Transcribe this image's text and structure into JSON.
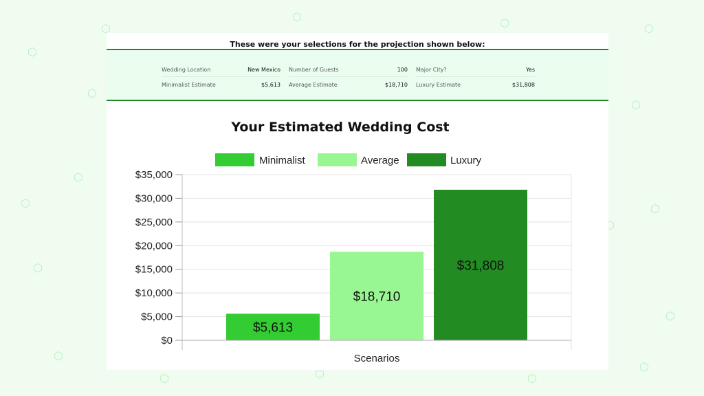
{
  "selections": {
    "title": "These were your selections for the projection shown below:",
    "rows": [
      [
        {
          "label": "Wedding Location",
          "value": "New Mexico"
        },
        {
          "label": "Number of Guests",
          "value": "100"
        },
        {
          "label": "Major City?",
          "value": "Yes"
        }
      ],
      [
        {
          "label": "Minimalist Estimate",
          "value": "$5,613"
        },
        {
          "label": "Average Estimate",
          "value": "$18,710"
        },
        {
          "label": "Luxury Estimate",
          "value": "$31,808"
        }
      ]
    ]
  },
  "colors": {
    "background": "#effcef",
    "accent": "#1a8a2a",
    "minimalist": "#33cc33",
    "average": "#99f793",
    "luxury": "#228b22"
  },
  "chart_data": {
    "type": "bar",
    "title": "Your Estimated Wedding Cost",
    "xlabel": "Scenarios",
    "ylabel": "",
    "ylim": [
      0,
      35000
    ],
    "yticks": [
      "$0",
      "$5,000",
      "$10,000",
      "$15,000",
      "$20,000",
      "$25,000",
      "$30,000",
      "$35,000"
    ],
    "legend_position": "top",
    "grid": true,
    "series": [
      {
        "name": "Minimalist",
        "value": 5613,
        "label": "$5,613",
        "color": "#33cc33"
      },
      {
        "name": "Average",
        "value": 18710,
        "label": "$18,710",
        "color": "#99f793"
      },
      {
        "name": "Luxury",
        "value": 31808,
        "label": "$31,808",
        "color": "#228b22"
      }
    ]
  }
}
